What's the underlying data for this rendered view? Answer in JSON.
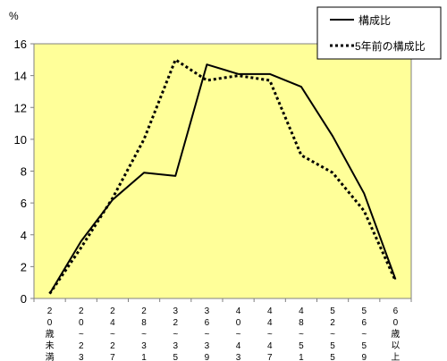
{
  "chart_data": {
    "type": "line",
    "unit_label": "%",
    "categories": [
      [
        "2",
        "0",
        "歳",
        "未",
        "満"
      ],
      [
        "2",
        "0",
        "~",
        "2",
        "3"
      ],
      [
        "2",
        "4",
        "~",
        "2",
        "7"
      ],
      [
        "2",
        "8",
        "~",
        "3",
        "1"
      ],
      [
        "3",
        "2",
        "~",
        "3",
        "5"
      ],
      [
        "3",
        "6",
        "~",
        "3",
        "9"
      ],
      [
        "4",
        "0",
        "~",
        "4",
        "3"
      ],
      [
        "4",
        "4",
        "~",
        "4",
        "7"
      ],
      [
        "4",
        "8",
        "~",
        "5",
        "1"
      ],
      [
        "5",
        "2",
        "~",
        "5",
        "5"
      ],
      [
        "5",
        "6",
        "~",
        "5",
        "9"
      ],
      [
        "6",
        "0",
        "歳",
        "以",
        "上"
      ]
    ],
    "series": [
      {
        "name": "構成比",
        "style": "solid",
        "values": [
          0.3,
          3.6,
          6.2,
          7.9,
          7.7,
          14.7,
          14.1,
          14.1,
          13.3,
          10.2,
          6.6,
          1.2
        ]
      },
      {
        "name": "5年前の構成比",
        "style": "dotted",
        "values": [
          0.3,
          3.2,
          6.3,
          10.0,
          15.0,
          13.7,
          14.0,
          13.7,
          9.0,
          7.9,
          5.5,
          1.1
        ]
      }
    ],
    "ylim": [
      0,
      16
    ],
    "yticks": [
      0,
      2,
      4,
      6,
      8,
      10,
      12,
      14,
      16
    ],
    "plot_bg": "#ffff99",
    "line_color": "#000000",
    "legend_position": "top-right",
    "grid": false
  }
}
